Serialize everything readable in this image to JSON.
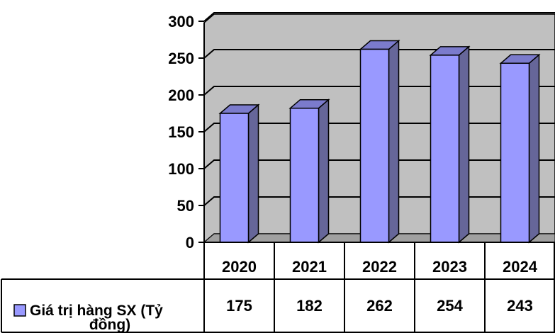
{
  "chart_data": {
    "type": "bar",
    "categories": [
      "2020",
      "2021",
      "2022",
      "2023",
      "2024"
    ],
    "series": [
      {
        "name": "Giá trị hàng SX (Tỷ đồng)",
        "values": [
          175,
          182,
          262,
          254,
          243
        ]
      }
    ],
    "title": "",
    "xlabel": "",
    "ylabel": "",
    "ylim": [
      0,
      300
    ],
    "yticks": [
      "0",
      "50",
      "100",
      "150",
      "200",
      "250",
      "300"
    ],
    "grid": true,
    "style": "3d",
    "legend_placement": "bottom-left",
    "data_table": true,
    "colors": {
      "bar_front": "#9999ff",
      "bar_side": "#666699",
      "bar_top": "#7b7bcc",
      "plot_background": "#c0c0c0",
      "floor": "#a0a0a0",
      "legend_swatch": "#9999ff"
    }
  },
  "legend": {
    "label_line1": "Giá trị hàng SX (Tỷ",
    "label_line2": "đồng)"
  }
}
